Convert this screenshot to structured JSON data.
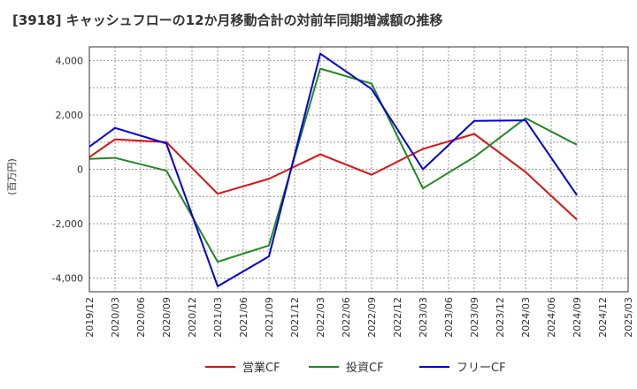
{
  "chart_data": {
    "type": "line",
    "title": "[3918]  キャッシュフローの12か月移動合計の対前年同期増減額の推移",
    "ylabel": "(百万円)",
    "xlabel": "",
    "ylim": [
      -4500,
      4500
    ],
    "yticks": [
      4000,
      2000,
      0,
      -2000,
      -4000
    ],
    "ytick_labels": [
      "4,000",
      "2,000",
      "0",
      "-2,000",
      "-4,000"
    ],
    "xtick_labels": [
      "2019/12",
      "2020/03",
      "2020/06",
      "2020/09",
      "2020/12",
      "2021/03",
      "2021/06",
      "2021/09",
      "2021/12",
      "2022/03",
      "2022/06",
      "2022/09",
      "2022/12",
      "2023/03",
      "2023/06",
      "2023/09",
      "2023/12",
      "2024/03",
      "2024/06",
      "2024/09",
      "2024/12",
      "2025/03"
    ],
    "grid": true,
    "legend_position": "bottom",
    "x": [
      "2019/12",
      "2020/03",
      "2020/09",
      "2021/03",
      "2021/09",
      "2022/03",
      "2022/09",
      "2023/03",
      "2023/09",
      "2024/03",
      "2024/09"
    ],
    "series": [
      {
        "name": "営業CF",
        "color": "#dd1111",
        "values": [
          450,
          1100,
          1000,
          -900,
          -350,
          550,
          -200,
          750,
          1300,
          -100,
          -1850
        ]
      },
      {
        "name": "投資CF",
        "color": "#228822",
        "values": [
          380,
          420,
          -50,
          -3400,
          -2800,
          3700,
          3150,
          -700,
          450,
          1880,
          900
        ]
      },
      {
        "name": "フリーCF",
        "color": "#0000dd",
        "values": [
          830,
          1520,
          950,
          -4300,
          -3200,
          4250,
          2950,
          0,
          1780,
          1800,
          -950
        ]
      }
    ]
  }
}
